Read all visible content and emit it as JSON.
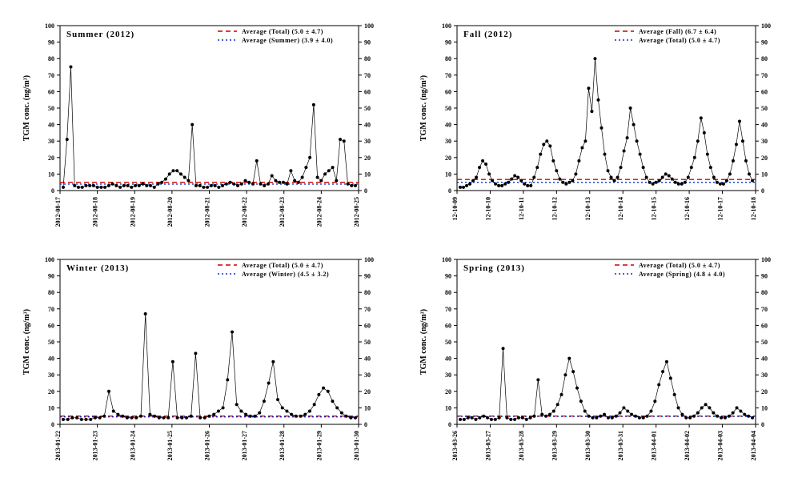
{
  "global": {
    "ylabel": "TGM conc. (ng/m³)",
    "ylim": [
      0,
      100
    ],
    "ytick_step": 10,
    "background_color": "#ffffff",
    "axis_color": "#000000",
    "tick_fontsize": 8,
    "label_fontsize": 10,
    "title_fontsize": 11,
    "legend_fontsize": 8,
    "marker_color": "#000000",
    "marker_size": 2.0,
    "line_color": "#000000",
    "line_width": 0.7,
    "avg_total": {
      "label": "Average (Total) (5.0 ± 4.7)",
      "value": 5.0,
      "color": "#cc0000",
      "style": "dashed"
    },
    "xlabel_rotate": 90
  },
  "panels": [
    {
      "title": "Summer (2012)",
      "legend": [
        {
          "label": "Average (Total) (5.0 ± 4.7)",
          "value": 5.0,
          "color": "#cc0000",
          "style": "dashed"
        },
        {
          "label": "Average (Summer) (3.9 ± 4.0)",
          "value": 3.9,
          "color": "#0033cc",
          "style": "dotted"
        }
      ],
      "x_ticks": [
        "2012-08-17",
        "2012-08-18",
        "2012-08-19",
        "2012-08-20",
        "2012-08-21",
        "2012-08-22",
        "2012-08-23",
        "2012-08-24",
        "2012-08-25"
      ],
      "series_values": [
        2,
        31,
        75,
        3,
        2,
        2,
        3,
        3,
        3,
        2,
        2,
        2,
        3,
        4,
        3,
        2,
        3,
        3,
        2,
        3,
        3,
        4,
        3,
        3,
        2,
        4,
        5,
        7,
        10,
        12,
        12,
        10,
        8,
        6,
        40,
        3,
        3,
        2,
        2,
        3,
        3,
        2,
        3,
        4,
        5,
        4,
        3,
        4,
        6,
        5,
        4,
        18,
        4,
        3,
        4,
        9,
        6,
        5,
        5,
        4,
        12,
        6,
        5,
        8,
        14,
        20,
        52,
        8,
        6,
        10,
        12,
        14,
        6,
        31,
        30,
        4,
        3,
        3
      ]
    },
    {
      "title": "Fall (2012)",
      "legend": [
        {
          "label": "Average (Fall) (6.7 ± 6.4)",
          "value": 6.7,
          "color": "#cc0000",
          "style": "dashed"
        },
        {
          "label": "Average (Total) (5.0 ± 4.7)",
          "value": 5.0,
          "color": "#0033cc",
          "style": "dotted"
        }
      ],
      "x_ticks": [
        "12-10-09",
        "12-10-10",
        "12-10-11",
        "12-10-12",
        "12-10-13",
        "12-10-14",
        "12-10-15",
        "12-10-16",
        "12-10-17",
        "12-10-18"
      ],
      "series_values": [
        2,
        2,
        3,
        4,
        6,
        8,
        14,
        18,
        16,
        10,
        6,
        4,
        3,
        3,
        4,
        5,
        7,
        9,
        8,
        6,
        4,
        3,
        3,
        8,
        14,
        22,
        28,
        30,
        27,
        18,
        12,
        7,
        5,
        4,
        5,
        6,
        10,
        18,
        26,
        30,
        62,
        48,
        80,
        55,
        38,
        22,
        12,
        8,
        6,
        8,
        14,
        24,
        32,
        50,
        40,
        30,
        22,
        14,
        8,
        5,
        4,
        5,
        6,
        8,
        10,
        9,
        7,
        5,
        4,
        4,
        5,
        8,
        14,
        20,
        30,
        44,
        35,
        22,
        14,
        8,
        5,
        4,
        4,
        6,
        10,
        18,
        28,
        42,
        30,
        18,
        10,
        6
      ]
    },
    {
      "title": "Winter (2013)",
      "legend": [
        {
          "label": "Average (Total) (5.0 ± 4.7)",
          "value": 5.0,
          "color": "#cc0000",
          "style": "dashed"
        },
        {
          "label": "Average (Winter) (4.5 ± 3.2)",
          "value": 4.5,
          "color": "#0033cc",
          "style": "dotted"
        }
      ],
      "x_ticks": [
        "2013-01-22",
        "2013-01-23",
        "2013-01-24",
        "2013-01-25",
        "2013-01-26",
        "2013-01-27",
        "2013-01-28",
        "2013-01-29",
        "2013-01-30"
      ],
      "series_values": [
        3,
        3,
        4,
        4,
        3,
        3,
        3,
        4,
        4,
        5,
        20,
        8,
        6,
        5,
        4,
        4,
        4,
        5,
        67,
        6,
        5,
        4,
        4,
        4,
        38,
        4,
        4,
        4,
        5,
        43,
        4,
        4,
        5,
        6,
        8,
        10,
        27,
        56,
        12,
        8,
        6,
        5,
        5,
        7,
        14,
        25,
        38,
        15,
        10,
        8,
        6,
        5,
        5,
        6,
        8,
        12,
        18,
        22,
        20,
        14,
        10,
        7,
        5,
        4,
        4
      ]
    },
    {
      "title": "Spring (2013)",
      "legend": [
        {
          "label": "Average (Total) (5.0 ± 4.7)",
          "value": 5.0,
          "color": "#cc0000",
          "style": "dashed"
        },
        {
          "label": "Average (Spring) (4.8 ± 4.0)",
          "value": 4.8,
          "color": "#0033cc",
          "style": "dotted"
        }
      ],
      "x_ticks": [
        "2013-03-26",
        "2013-03-27",
        "2013-03-28",
        "2013-03-29",
        "2013-03-30",
        "2013-03-31",
        "2013-04-01",
        "2013-04-02",
        "2013-04-03",
        "2013-04-04"
      ],
      "series_values": [
        3,
        3,
        4,
        4,
        3,
        4,
        5,
        4,
        3,
        3,
        4,
        46,
        4,
        3,
        3,
        4,
        4,
        3,
        4,
        5,
        27,
        6,
        5,
        6,
        8,
        12,
        18,
        30,
        40,
        32,
        22,
        14,
        8,
        5,
        4,
        4,
        5,
        6,
        4,
        4,
        5,
        7,
        10,
        8,
        6,
        5,
        4,
        4,
        5,
        8,
        14,
        24,
        32,
        38,
        28,
        18,
        10,
        6,
        4,
        4,
        5,
        7,
        10,
        12,
        10,
        7,
        5,
        4,
        4,
        5,
        7,
        10,
        8,
        6,
        5,
        4
      ]
    }
  ]
}
